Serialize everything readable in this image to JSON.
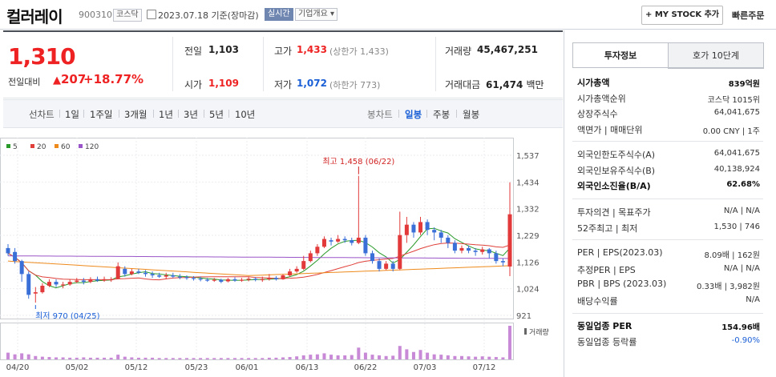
{
  "header": {
    "stock_name": "컬러레이",
    "stock_code": "900310",
    "market": "코스닥",
    "date": "2023.07.18",
    "basis": "기준(장마감)",
    "live_badge": "실시간",
    "corp_overview": "기업개요",
    "my_stock_button": "+ MY STOCK 추가",
    "quick_order": "빠른주문"
  },
  "quote": {
    "price": "1,310",
    "change_label": "전일대비",
    "change": "207",
    "change_pct": "+18.77%",
    "prev_close_label": "전일",
    "prev_close": "1,103",
    "high_label": "고가",
    "high": "1,433",
    "high_limit": "(상한가 1,433)",
    "volume_label": "거래량",
    "volume": "45,467,251",
    "open_label": "시가",
    "open": "1,109",
    "low_label": "저가",
    "low": "1,072",
    "low_limit": "(하한가 773)",
    "amount_label": "거래대금",
    "amount": "61,474",
    "amount_unit": "백만"
  },
  "periods": {
    "line_label": "선차트",
    "line_items": [
      "1일",
      "1주일",
      "3개월",
      "1년",
      "3년",
      "5년",
      "10년"
    ],
    "candle_label": "봉차트",
    "candle_items": [
      "일봉",
      "주봉",
      "월봉"
    ],
    "active_candle": "일봉"
  },
  "chart_data": {
    "type": "candlestick",
    "legend": [
      "5",
      "20",
      "60",
      "120"
    ],
    "legend_colors": [
      "#2a9a2a",
      "#e0403a",
      "#ee8a1c",
      "#9a55c8"
    ],
    "y_ticks": [
      "1,537",
      "1,434",
      "1,332",
      "1,229",
      "1,126",
      "1,024",
      "921"
    ],
    "x_ticks": [
      "04/20",
      "05/02",
      "05/12",
      "05/23",
      "06/01",
      "06/13",
      "06/22",
      "07/03",
      "07/12"
    ],
    "ylim": [
      921,
      1537
    ],
    "high_annotation": "최고 1,458 (06/22)",
    "low_annotation": "최저 970 (04/25)",
    "volume_label": "거래량",
    "candles": [
      [
        1180,
        1160,
        1195,
        1150
      ],
      [
        1165,
        1130,
        1180,
        1120
      ],
      [
        1130,
        1080,
        1135,
        1050
      ],
      [
        1080,
        1000,
        1090,
        985
      ],
      [
        1005,
        1010,
        1030,
        970
      ],
      [
        1010,
        1035,
        1045,
        1005
      ],
      [
        1035,
        1050,
        1060,
        1030
      ],
      [
        1050,
        1040,
        1060,
        1030
      ],
      [
        1040,
        1040,
        1050,
        1025
      ],
      [
        1040,
        1050,
        1060,
        1035
      ],
      [
        1050,
        1055,
        1065,
        1045
      ],
      [
        1055,
        1050,
        1065,
        1040
      ],
      [
        1050,
        1060,
        1068,
        1045
      ],
      [
        1060,
        1055,
        1070,
        1050
      ],
      [
        1055,
        1060,
        1070,
        1050
      ],
      [
        1058,
        1060,
        1068,
        1050
      ],
      [
        1062,
        1110,
        1125,
        1060
      ],
      [
        1100,
        1080,
        1110,
        1070
      ],
      [
        1080,
        1090,
        1100,
        1075
      ],
      [
        1090,
        1085,
        1100,
        1080
      ],
      [
        1085,
        1080,
        1095,
        1070
      ],
      [
        1080,
        1075,
        1090,
        1065
      ],
      [
        1075,
        1070,
        1085,
        1065
      ],
      [
        1070,
        1075,
        1085,
        1060
      ],
      [
        1075,
        1070,
        1085,
        1065
      ],
      [
        1070,
        1068,
        1080,
        1060
      ],
      [
        1068,
        1066,
        1075,
        1058
      ],
      [
        1065,
        1062,
        1072,
        1055
      ],
      [
        1062,
        1060,
        1070,
        1052
      ],
      [
        1058,
        1055,
        1065,
        1050
      ],
      [
        1056,
        1058,
        1065,
        1050
      ],
      [
        1058,
        1050,
        1062,
        1045
      ],
      [
        1052,
        1060,
        1065,
        1048
      ],
      [
        1060,
        1055,
        1068,
        1050
      ],
      [
        1055,
        1058,
        1065,
        1050
      ],
      [
        1058,
        1062,
        1070,
        1052
      ],
      [
        1062,
        1058,
        1068,
        1052
      ],
      [
        1058,
        1060,
        1070,
        1050
      ],
      [
        1060,
        1065,
        1080,
        1055
      ],
      [
        1065,
        1060,
        1072,
        1055
      ],
      [
        1060,
        1075,
        1080,
        1058
      ],
      [
        1075,
        1090,
        1100,
        1070
      ],
      [
        1090,
        1100,
        1110,
        1085
      ],
      [
        1100,
        1130,
        1150,
        1095
      ],
      [
        1130,
        1160,
        1170,
        1125
      ],
      [
        1160,
        1185,
        1195,
        1150
      ],
      [
        1185,
        1215,
        1225,
        1180
      ],
      [
        1210,
        1205,
        1220,
        1190
      ],
      [
        1205,
        1215,
        1230,
        1200
      ],
      [
        1215,
        1210,
        1225,
        1200
      ],
      [
        1210,
        1200,
        1220,
        1190
      ],
      [
        1200,
        1220,
        1458,
        1195
      ],
      [
        1220,
        1160,
        1230,
        1150
      ],
      [
        1160,
        1130,
        1170,
        1120
      ],
      [
        1130,
        1100,
        1140,
        1090
      ],
      [
        1100,
        1120,
        1130,
        1095
      ],
      [
        1120,
        1100,
        1130,
        1090
      ],
      [
        1100,
        1230,
        1320,
        1095
      ],
      [
        1230,
        1270,
        1300,
        1200
      ],
      [
        1270,
        1240,
        1280,
        1220
      ],
      [
        1240,
        1280,
        1300,
        1230
      ],
      [
        1280,
        1250,
        1290,
        1230
      ],
      [
        1250,
        1240,
        1260,
        1210
      ],
      [
        1240,
        1220,
        1250,
        1200
      ],
      [
        1220,
        1200,
        1230,
        1180
      ],
      [
        1200,
        1170,
        1210,
        1160
      ],
      [
        1170,
        1180,
        1190,
        1160
      ],
      [
        1180,
        1170,
        1190,
        1160
      ],
      [
        1170,
        1165,
        1180,
        1150
      ],
      [
        1165,
        1175,
        1185,
        1155
      ],
      [
        1175,
        1160,
        1180,
        1140
      ],
      [
        1160,
        1130,
        1170,
        1120
      ],
      [
        1130,
        1125,
        1140,
        1110
      ],
      [
        1109,
        1310,
        1433,
        1072
      ]
    ],
    "volumes": [
      20,
      15,
      18,
      15,
      10,
      8,
      7,
      6,
      6,
      5,
      5,
      6,
      5,
      5,
      5,
      5,
      14,
      8,
      6,
      5,
      5,
      5,
      4,
      4,
      4,
      4,
      4,
      4,
      4,
      4,
      4,
      4,
      4,
      4,
      4,
      4,
      4,
      4,
      5,
      5,
      6,
      7,
      9,
      12,
      14,
      15,
      18,
      14,
      12,
      12,
      13,
      35,
      20,
      14,
      12,
      10,
      11,
      40,
      30,
      22,
      28,
      20,
      15,
      14,
      12,
      10,
      10,
      9,
      8,
      9,
      8,
      7,
      6,
      100
    ]
  },
  "side": {
    "tabs": [
      "투자정보",
      "호가 10단계"
    ],
    "rows1": [
      {
        "label": "시가총액",
        "value": "839억원",
        "bold": true
      },
      {
        "label": "시가총액순위",
        "value": "코스닥 1015위"
      },
      {
        "label": "상장주식수",
        "value": "64,041,675"
      },
      {
        "label": "액면가 | 매매단위",
        "value": "0.00 CNY | 1주"
      }
    ],
    "rows2": [
      {
        "label": "외국인한도주식수(A)",
        "value": "64,041,675"
      },
      {
        "label": "외국인보유주식수(B)",
        "value": "40,138,924"
      },
      {
        "label": "외국인소진율(B/A)",
        "value": "62.68%",
        "bold": true
      }
    ],
    "rows3": [
      {
        "label": "투자의견 | 목표주가",
        "value": "N/A | N/A"
      },
      {
        "label": "52주최고 | 최저",
        "value": "1,530 | 746"
      }
    ],
    "rows4": [
      {
        "label": "PER | EPS(2023.03)",
        "value": "8.09배 | 162원"
      },
      {
        "label": "추정PER | EPS",
        "value": "N/A | N/A"
      },
      {
        "label": "PBR | BPS (2023.03)",
        "value": "0.33배 | 3,982원"
      },
      {
        "label": "배당수익률",
        "value": "N/A"
      }
    ],
    "rows5": [
      {
        "label": "동일업종 PER",
        "value": "154.96배",
        "bold": true
      },
      {
        "label": "동일업종 등락률",
        "value": "-0.90%",
        "blue": true
      }
    ]
  }
}
